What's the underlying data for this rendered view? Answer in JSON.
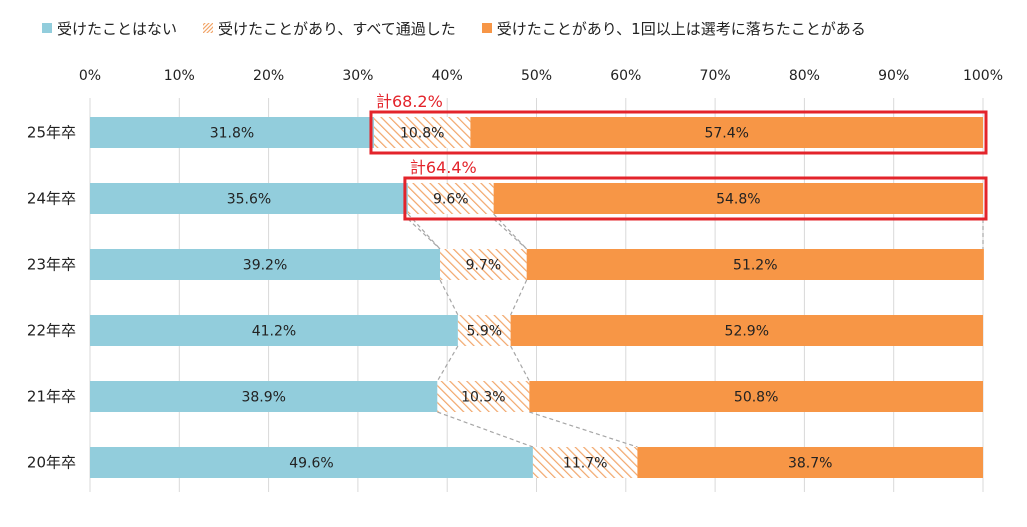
{
  "legend": {
    "never": "受けたことはない",
    "all_passed": "受けたことがあり、すべて通過した",
    "failed": "受けたことがあり、1回以上は選考に落ちたことがある"
  },
  "colors": {
    "never": "#92cddc",
    "all_passed_stripe": "#f2a66a",
    "failed": "#f79646",
    "highlight": "#e3242b",
    "connector": "#a6a6a6"
  },
  "chart_data": {
    "type": "bar",
    "orientation": "horizontal",
    "stacked": "percent",
    "title": "",
    "xlabel": "",
    "ylabel": "",
    "xlim": [
      0,
      100
    ],
    "x_ticks": [
      "0%",
      "10%",
      "20%",
      "30%",
      "40%",
      "50%",
      "60%",
      "70%",
      "80%",
      "90%",
      "100%"
    ],
    "categories": [
      "25年卒",
      "24年卒",
      "23年卒",
      "22年卒",
      "21年卒",
      "20年卒"
    ],
    "series": [
      {
        "name": "受けたことはない",
        "key": "never",
        "values": [
          31.8,
          35.6,
          39.2,
          41.2,
          38.9,
          49.6
        ]
      },
      {
        "name": "受けたことがあり、すべて通過した",
        "key": "all_passed",
        "values": [
          10.8,
          9.6,
          9.7,
          5.9,
          10.3,
          11.7
        ]
      },
      {
        "name": "受けたことがあり、1回以上は選考に落ちたことがある",
        "key": "failed",
        "values": [
          57.4,
          54.8,
          51.2,
          52.9,
          50.8,
          38.7
        ]
      }
    ],
    "annotations": [
      {
        "category": "25年卒",
        "text": "計68.2%"
      },
      {
        "category": "24年卒",
        "text": "計64.4%"
      }
    ],
    "grid": true,
    "legend_position": "top"
  }
}
